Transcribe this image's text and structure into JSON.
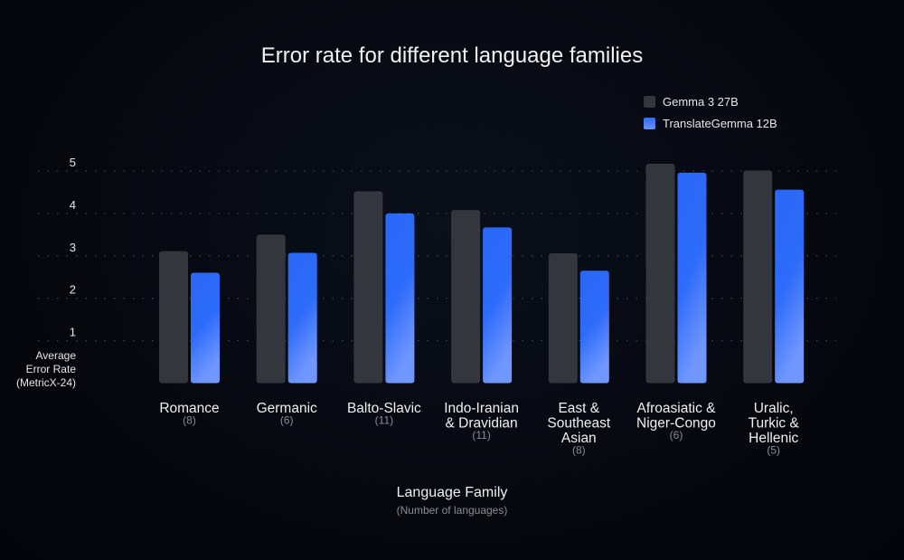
{
  "chart_data": {
    "type": "bar",
    "title": "Error rate for different language families",
    "xlabel": "Language Family",
    "xlabel_sub": "(Number of languages)",
    "ylabel": [
      "Average",
      "Error Rate",
      "(MetricX-24)"
    ],
    "ylim": [
      0,
      5
    ],
    "yticks": [
      "1",
      "2",
      "3",
      "4",
      "5"
    ],
    "grid": true,
    "legend_position": "top-right",
    "categories": [
      {
        "lines": [
          "Romance"
        ],
        "count": "(8)"
      },
      {
        "lines": [
          "Germanic"
        ],
        "count": "(6)"
      },
      {
        "lines": [
          "Balto-Slavic"
        ],
        "count": "(11)"
      },
      {
        "lines": [
          "Indo-Iranian",
          "& Dravidian"
        ],
        "count": "(11)"
      },
      {
        "lines": [
          "East &",
          "Southeast",
          "Asian"
        ],
        "count": "(8)"
      },
      {
        "lines": [
          "Afroasiatic &",
          "Niger-Congo"
        ],
        "count": "(6)"
      },
      {
        "lines": [
          "Uralic,",
          "Turkic &",
          "Hellenic"
        ],
        "count": "(5)"
      }
    ],
    "series": [
      {
        "name": "Gemma 3 27B",
        "color": "#33363d",
        "values": [
          3.11,
          3.5,
          4.52,
          4.08,
          3.06,
          5.17,
          5.01
        ]
      },
      {
        "name": "TranslateGemma 12B",
        "color": "#2f6cf5",
        "values": [
          2.6,
          3.07,
          4.0,
          3.67,
          2.65,
          4.96,
          4.56
        ]
      }
    ]
  }
}
